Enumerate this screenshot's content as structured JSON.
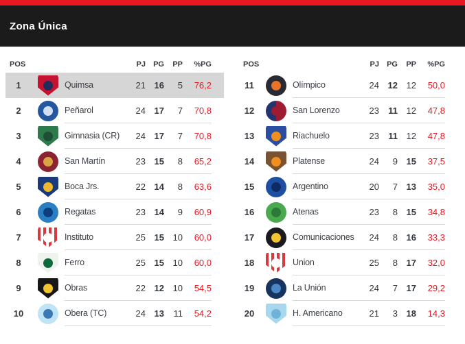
{
  "theme": {
    "accent": "#e51923",
    "header_bg": "#1b1b1b",
    "highlight_bg": "#d6d6d6",
    "divider": "#d9d9d9",
    "text_dark": "#33373c",
    "text_team": "#3e4248"
  },
  "header": {
    "title": "Zona Única"
  },
  "table": {
    "columns": {
      "pos": "POS",
      "pj": "PJ",
      "pg": "PG",
      "pp": "PP",
      "pct": "%PG"
    },
    "left_rows": [
      {
        "pos": "1",
        "team": "Quimsa",
        "pj": "21",
        "pg": "16",
        "pp": "5",
        "pct": "76,2",
        "bold": "pg",
        "highlighted": true,
        "logo": {
          "name": "quimsa-logo",
          "shape": "shield",
          "c1": "#c41230",
          "c2": "#232a5c"
        }
      },
      {
        "pos": "2",
        "team": "Peñarol",
        "pj": "24",
        "pg": "17",
        "pp": "7",
        "pct": "70,8",
        "bold": "pg",
        "logo": {
          "name": "penarol-logo",
          "shape": "circle",
          "c1": "#2457a0",
          "c2": "#cfe0f2"
        }
      },
      {
        "pos": "3",
        "team": "Gimnasia (CR)",
        "pj": "24",
        "pg": "17",
        "pp": "7",
        "pct": "70,8",
        "bold": "pg",
        "logo": {
          "name": "gimnasia-cr-logo",
          "shape": "shield",
          "c1": "#2f7a4d",
          "c2": "#1d4f33"
        }
      },
      {
        "pos": "4",
        "team": "San Martín",
        "pj": "23",
        "pg": "15",
        "pp": "8",
        "pct": "65,2",
        "bold": "pg",
        "logo": {
          "name": "san-martin-logo",
          "shape": "circle",
          "c1": "#8c2332",
          "c2": "#d9a441"
        }
      },
      {
        "pos": "5",
        "team": "Boca Jrs.",
        "pj": "22",
        "pg": "14",
        "pp": "8",
        "pct": "63,6",
        "bold": "pg",
        "logo": {
          "name": "boca-jrs-logo",
          "shape": "shield",
          "c1": "#1a3a7a",
          "c2": "#f0b72e"
        }
      },
      {
        "pos": "6",
        "team": "Regatas",
        "pj": "23",
        "pg": "14",
        "pp": "9",
        "pct": "60,9",
        "bold": "pg",
        "logo": {
          "name": "regatas-logo",
          "shape": "circle",
          "c1": "#2a7fc4",
          "c2": "#0e3f7c"
        }
      },
      {
        "pos": "7",
        "team": "Instituto",
        "pj": "25",
        "pg": "15",
        "pp": "10",
        "pct": "60,0",
        "bold": "pg",
        "logo": {
          "name": "instituto-logo",
          "shape": "shield",
          "pattern": "stripes",
          "c1": "#d63a3f",
          "c2": "#ffffff"
        }
      },
      {
        "pos": "8",
        "team": "Ferro",
        "pj": "25",
        "pg": "15",
        "pp": "10",
        "pct": "60,0",
        "bold": "pg",
        "logo": {
          "name": "ferro-logo",
          "shape": "shield",
          "c1": "#eef3ee",
          "c2": "#0c6b3d"
        }
      },
      {
        "pos": "9",
        "team": "Obras",
        "pj": "22",
        "pg": "12",
        "pp": "10",
        "pct": "54,5",
        "bold": "pg",
        "logo": {
          "name": "obras-logo",
          "shape": "shield",
          "c1": "#17171a",
          "c2": "#f2c530"
        }
      },
      {
        "pos": "10",
        "team": "Obera (TC)",
        "pj": "24",
        "pg": "13",
        "pp": "11",
        "pct": "54,2",
        "bold": "pg",
        "logo": {
          "name": "obera-tc-logo",
          "shape": "circle",
          "c1": "#bfe4f5",
          "c2": "#3a78b5"
        }
      }
    ],
    "right_rows": [
      {
        "pos": "11",
        "team": "Olímpico",
        "pj": "24",
        "pg": "12",
        "pp": "12",
        "pct": "50,0",
        "bold": "pg",
        "logo": {
          "name": "olimpico-logo",
          "shape": "circle",
          "c1": "#2a2a35",
          "c2": "#e8732a"
        }
      },
      {
        "pos": "12",
        "team": "San Lorenzo",
        "pj": "23",
        "pg": "11",
        "pp": "12",
        "pct": "47,8",
        "bold": "pg",
        "logo": {
          "name": "san-lorenzo-logo",
          "shape": "circle",
          "pattern": "split",
          "c1": "#22356e",
          "c2": "#9e1b32"
        }
      },
      {
        "pos": "13",
        "team": "Riachuelo",
        "pj": "23",
        "pg": "11",
        "pp": "12",
        "pct": "47,8",
        "bold": "pg",
        "logo": {
          "name": "riachuelo-logo",
          "shape": "shield",
          "c1": "#2b4ea0",
          "c2": "#ef8f1f"
        }
      },
      {
        "pos": "14",
        "team": "Platense",
        "pj": "24",
        "pg": "9",
        "pp": "15",
        "pct": "37,5",
        "bold": "pp",
        "logo": {
          "name": "platense-logo",
          "shape": "shield",
          "c1": "#7a5230",
          "c2": "#ef8f1f"
        }
      },
      {
        "pos": "15",
        "team": "Argentino",
        "pj": "20",
        "pg": "7",
        "pp": "13",
        "pct": "35,0",
        "bold": "pp",
        "logo": {
          "name": "argentino-logo",
          "shape": "circle",
          "c1": "#1f4fa0",
          "c2": "#0d2b66"
        }
      },
      {
        "pos": "16",
        "team": "Atenas",
        "pj": "23",
        "pg": "8",
        "pp": "15",
        "pct": "34,8",
        "bold": "pp",
        "logo": {
          "name": "atenas-logo",
          "shape": "circle",
          "c1": "#4aa84f",
          "c2": "#2d7a38"
        }
      },
      {
        "pos": "17",
        "team": "Comunicaciones",
        "pj": "24",
        "pg": "8",
        "pp": "16",
        "pct": "33,3",
        "bold": "pp",
        "logo": {
          "name": "comunicaciones-logo",
          "shape": "circle",
          "c1": "#1b1b1f",
          "c2": "#f2c530"
        }
      },
      {
        "pos": "18",
        "team": "Union",
        "pj": "25",
        "pg": "8",
        "pp": "17",
        "pct": "32,0",
        "bold": "pp",
        "logo": {
          "name": "union-logo",
          "shape": "shield",
          "pattern": "stripes",
          "c1": "#d63a3f",
          "c2": "#ffffff"
        }
      },
      {
        "pos": "19",
        "team": "La Unión",
        "pj": "24",
        "pg": "7",
        "pp": "17",
        "pct": "29,2",
        "bold": "pp",
        "logo": {
          "name": "la-union-logo",
          "shape": "circle",
          "c1": "#16345e",
          "c2": "#4a86c8"
        }
      },
      {
        "pos": "20",
        "team": "H. Americano",
        "pj": "21",
        "pg": "3",
        "pp": "18",
        "pct": "14,3",
        "bold": "pp",
        "logo": {
          "name": "h-americano-logo",
          "shape": "shield",
          "c1": "#a7d8ee",
          "c2": "#6fb3d9"
        }
      }
    ]
  }
}
